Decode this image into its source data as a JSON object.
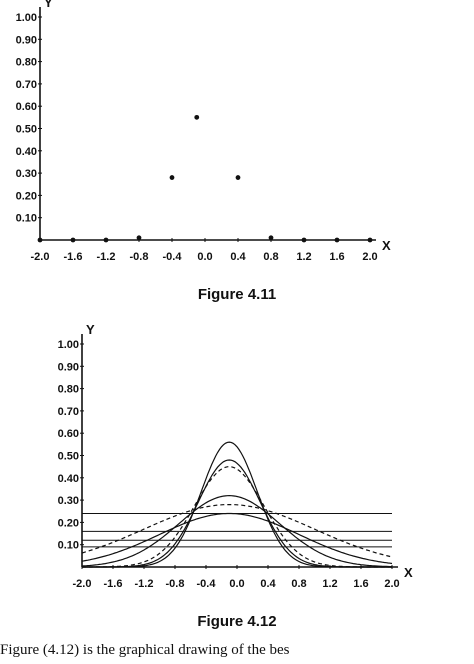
{
  "chart_data": [
    {
      "type": "scatter",
      "title": "",
      "xlabel": "X",
      "ylabel": "Y",
      "x_ticks": [
        "-2.0",
        "-1.6",
        "-1.2",
        "-0.8",
        "-0.4",
        "0.0",
        "0.4",
        "0.8",
        "1.2",
        "1.6",
        "2.0"
      ],
      "y_ticks": [
        "1.00",
        "0.90",
        "0.80",
        "0.70",
        "0.60",
        "0.50",
        "0.40",
        "0.30",
        "0.20",
        "0.10"
      ],
      "xlim": [
        -2.0,
        2.0
      ],
      "ylim": [
        0,
        1.0
      ],
      "series": [
        {
          "points": [
            {
              "x": -2.0,
              "y": 0.0
            },
            {
              "x": -1.6,
              "y": 0.0
            },
            {
              "x": -1.2,
              "y": 0.0
            },
            {
              "x": -0.8,
              "y": 0.01
            },
            {
              "x": -0.4,
              "y": 0.28
            },
            {
              "x": -0.1,
              "y": 0.55
            },
            {
              "x": 0.4,
              "y": 0.28
            },
            {
              "x": 0.8,
              "y": 0.01
            },
            {
              "x": 1.2,
              "y": 0.0
            },
            {
              "x": 1.6,
              "y": 0.0
            },
            {
              "x": 2.0,
              "y": 0.0
            }
          ]
        }
      ]
    },
    {
      "type": "line",
      "title": "",
      "xlabel": "X",
      "ylabel": "Y",
      "x_ticks": [
        "-2.0",
        "-1.6",
        "-1.2",
        "-0.8",
        "-0.4",
        "0.0",
        "0.4",
        "0.8",
        "1.2",
        "1.6",
        "2.0"
      ],
      "y_ticks": [
        "1.00",
        "0.90",
        "0.80",
        "0.70",
        "0.60",
        "0.50",
        "0.40",
        "0.30",
        "0.20",
        "0.10"
      ],
      "xlim": [
        -2.0,
        2.0
      ],
      "ylim": [
        0,
        1.0
      ],
      "curves_gaussian": [
        {
          "center": -0.1,
          "peak": 0.56,
          "sigma": 0.36,
          "style": "solid"
        },
        {
          "center": -0.1,
          "peak": 0.48,
          "sigma": 0.4,
          "style": "solid"
        },
        {
          "center": -0.1,
          "peak": 0.45,
          "sigma": 0.45,
          "style": "dashed"
        },
        {
          "center": -0.1,
          "peak": 0.32,
          "sigma": 0.65,
          "style": "solid"
        },
        {
          "center": -0.1,
          "peak": 0.24,
          "sigma": 0.9,
          "style": "solid"
        },
        {
          "center": -0.1,
          "peak": 0.28,
          "sigma": 1.1,
          "style": "dashed"
        }
      ],
      "horizontal_lines": [
        0.24,
        0.16,
        0.12,
        0.09
      ]
    }
  ],
  "captions": [
    "Figure 4.11",
    "Figure 4.12"
  ],
  "body_text": "Figure (4.12) is the graphical drawing of the bes"
}
